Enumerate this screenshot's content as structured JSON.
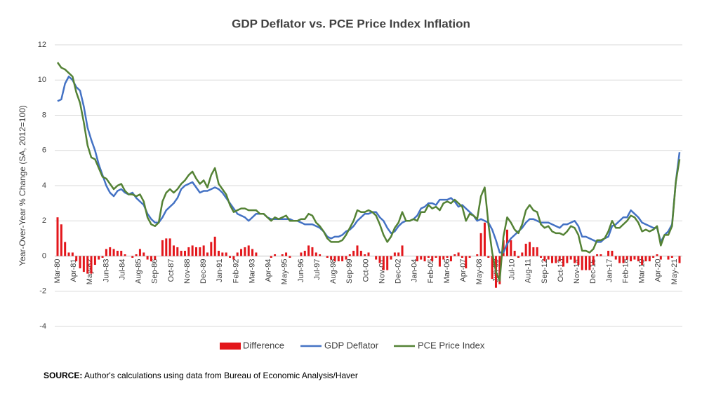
{
  "chart_data": {
    "type": "combo",
    "title": "GDP Deflator vs. PCE Price Index Inflation",
    "y_label": "Year-Over-Year % Change (SA, 2012=100)",
    "source_label": "SOURCE:",
    "source": "Author's calculations using data from Bureau of Economic Analysis/Haver",
    "x": [
      "Mar-80",
      "Jun-80",
      "Sep-80",
      "Dec-80",
      "Mar-81",
      "Jun-81",
      "Sep-81",
      "Dec-81",
      "Mar-82",
      "Jun-82",
      "Sep-82",
      "Dec-82",
      "Mar-83",
      "Jun-83",
      "Sep-83",
      "Dec-83",
      "Mar-84",
      "Jun-84",
      "Sep-84",
      "Dec-84",
      "Mar-85",
      "Jun-85",
      "Sep-85",
      "Dec-85",
      "Mar-86",
      "Jun-86",
      "Sep-86",
      "Dec-86",
      "Mar-87",
      "Jun-87",
      "Sep-87",
      "Dec-87",
      "Mar-88",
      "Jun-88",
      "Sep-88",
      "Dec-88",
      "Mar-89",
      "Jun-89",
      "Sep-89",
      "Dec-89",
      "Mar-90",
      "Jun-90",
      "Sep-90",
      "Dec-90",
      "Mar-91",
      "Jun-91",
      "Sep-91",
      "Dec-91",
      "Mar-92",
      "Jun-92",
      "Sep-92",
      "Dec-92",
      "Mar-93",
      "Jun-93",
      "Sep-93",
      "Dec-93",
      "Mar-94",
      "Jun-94",
      "Sep-94",
      "Dec-94",
      "Mar-95",
      "Jun-95",
      "Sep-95",
      "Dec-95",
      "Mar-96",
      "Jun-96",
      "Sep-96",
      "Dec-96",
      "Mar-97",
      "Jun-97",
      "Sep-97",
      "Dec-97",
      "Mar-98",
      "Jun-98",
      "Sep-98",
      "Dec-98",
      "Mar-99",
      "Jun-99",
      "Sep-99",
      "Dec-99",
      "Mar-00",
      "Jun-00",
      "Sep-00",
      "Dec-00",
      "Mar-01",
      "Jun-01",
      "Sep-01",
      "Dec-01",
      "Mar-02",
      "Jun-02",
      "Sep-02",
      "Dec-02",
      "Mar-03",
      "Jun-03",
      "Sep-03",
      "Dec-03",
      "Mar-04",
      "Jun-04",
      "Sep-04",
      "Dec-04",
      "Mar-05",
      "Jun-05",
      "Sep-05",
      "Dec-05",
      "Mar-06",
      "Jun-06",
      "Sep-06",
      "Dec-06",
      "Mar-07",
      "Jun-07",
      "Sep-07",
      "Dec-07",
      "Mar-08",
      "Jun-08",
      "Sep-08",
      "Dec-08",
      "Mar-09",
      "Jun-09",
      "Sep-09",
      "Dec-09",
      "Mar-10",
      "Jun-10",
      "Sep-10",
      "Dec-10",
      "Mar-11",
      "Jun-11",
      "Sep-11",
      "Dec-11",
      "Mar-12",
      "Jun-12",
      "Sep-12",
      "Dec-12",
      "Mar-13",
      "Jun-13",
      "Sep-13",
      "Dec-13",
      "Mar-14",
      "Jun-14",
      "Sep-14",
      "Dec-14",
      "Mar-15",
      "Jun-15",
      "Sep-15",
      "Dec-15",
      "Mar-16",
      "Jun-16",
      "Sep-16",
      "Dec-16",
      "Mar-17",
      "Jun-17",
      "Sep-17",
      "Dec-17",
      "Mar-18",
      "Jun-18",
      "Sep-18",
      "Dec-18",
      "Mar-19",
      "Jun-19",
      "Sep-19",
      "Dec-19",
      "Mar-20",
      "Jun-20",
      "Sep-20",
      "Dec-20",
      "Mar-21",
      "Jun-21",
      "Sep-21"
    ],
    "xlim": [
      "Mar-80",
      "Sep-21"
    ],
    "xticks": [
      "Mar-80",
      "Apr-81",
      "May-82",
      "Jun-83",
      "Jul-84",
      "Aug-85",
      "Sep-86",
      "Oct-87",
      "Nov-88",
      "Dec-89",
      "Jan-91",
      "Feb-92",
      "Mar-93",
      "Apr-94",
      "May-95",
      "Jun-96",
      "Jul-97",
      "Aug-98",
      "Sep-99",
      "Oct-00",
      "Nov-01",
      "Dec-02",
      "Jan-04",
      "Feb-05",
      "Mar-06",
      "Apr-07",
      "May-08",
      "Jun-09",
      "Jul-10",
      "Aug-11",
      "Sep-12",
      "Oct-13",
      "Nov-14",
      "Dec-15",
      "Jan-17",
      "Feb-18",
      "Mar-19",
      "Apr-20",
      "May-21"
    ],
    "ylim": [
      -4,
      12
    ],
    "yticks": [
      -4,
      -2,
      0,
      2,
      4,
      6,
      8,
      10,
      12
    ],
    "grid": true,
    "legend": "bottom",
    "series": [
      {
        "name": "Difference",
        "type": "bar",
        "color": "#e3161b",
        "values": [
          2.2,
          1.8,
          0.8,
          0.2,
          0.2,
          -0.3,
          -0.7,
          -0.9,
          -1.0,
          -1.0,
          -0.5,
          -0.2,
          -0.1,
          0.4,
          0.5,
          0.4,
          0.3,
          0.3,
          0.1,
          0.0,
          -0.1,
          0.1,
          0.4,
          0.2,
          -0.2,
          -0.3,
          -0.2,
          0.0,
          0.9,
          1.0,
          1.0,
          0.6,
          0.5,
          0.3,
          0.3,
          0.5,
          0.6,
          0.5,
          0.5,
          0.6,
          0.2,
          0.8,
          1.1,
          0.3,
          0.2,
          0.2,
          -0.1,
          -0.2,
          0.2,
          0.4,
          0.5,
          0.6,
          0.4,
          0.2,
          0.0,
          0.0,
          0.0,
          -0.1,
          0.1,
          0.0,
          0.1,
          0.2,
          -0.1,
          0.0,
          0.0,
          0.2,
          0.3,
          0.6,
          0.5,
          0.2,
          0.1,
          0.0,
          -0.1,
          -0.2,
          -0.3,
          -0.3,
          -0.3,
          -0.2,
          0.1,
          0.3,
          0.6,
          0.3,
          0.1,
          0.2,
          0.0,
          -0.2,
          -0.4,
          -0.8,
          -0.8,
          -0.2,
          0.2,
          0.2,
          0.6,
          0.0,
          0.0,
          0.0,
          -0.3,
          -0.2,
          -0.3,
          -0.1,
          -0.3,
          -0.1,
          -0.6,
          -0.2,
          -0.1,
          -0.3,
          0.1,
          0.2,
          -0.1,
          -0.7,
          -0.1,
          0.0,
          0.1,
          1.3,
          1.9,
          -0.1,
          -1.3,
          -1.8,
          -1.6,
          0.9,
          1.5,
          0.9,
          0.3,
          -0.1,
          0.2,
          0.7,
          0.8,
          0.5,
          0.5,
          -0.1,
          -0.3,
          -0.2,
          -0.4,
          -0.4,
          -0.3,
          -0.6,
          -0.4,
          -0.2,
          -0.4,
          -0.5,
          -0.8,
          -0.8,
          -0.8,
          -0.5,
          0.1,
          0.1,
          0.0,
          0.3,
          0.3,
          -0.2,
          -0.4,
          -0.4,
          -0.2,
          -0.3,
          -0.2,
          -0.3,
          -0.5,
          -0.3,
          -0.3,
          -0.1,
          0.1,
          -0.2,
          0.0,
          -0.2,
          -0.1,
          0.0,
          -0.4
        ]
      },
      {
        "name": "GDP Deflator",
        "type": "line",
        "color": "#4472c4",
        "values": [
          8.8,
          8.9,
          9.8,
          10.2,
          10.0,
          9.6,
          9.4,
          8.5,
          7.3,
          6.6,
          6.0,
          5.2,
          4.6,
          4.0,
          3.6,
          3.4,
          3.7,
          3.8,
          3.6,
          3.5,
          3.6,
          3.3,
          3.1,
          2.9,
          2.4,
          2.1,
          1.9,
          1.9,
          2.2,
          2.6,
          2.8,
          3.0,
          3.3,
          3.8,
          4.0,
          4.1,
          4.2,
          3.9,
          3.6,
          3.7,
          3.7,
          3.8,
          3.9,
          3.8,
          3.6,
          3.3,
          3.0,
          2.7,
          2.4,
          2.3,
          2.2,
          2.0,
          2.2,
          2.4,
          2.4,
          2.4,
          2.2,
          2.1,
          2.1,
          2.1,
          2.1,
          2.1,
          2.1,
          2.0,
          2.0,
          1.9,
          1.8,
          1.8,
          1.8,
          1.7,
          1.6,
          1.4,
          1.1,
          1.0,
          1.1,
          1.1,
          1.2,
          1.4,
          1.5,
          1.7,
          2.0,
          2.2,
          2.4,
          2.4,
          2.5,
          2.5,
          2.2,
          2.0,
          1.6,
          1.3,
          1.4,
          1.7,
          1.9,
          2.0,
          2.0,
          2.1,
          2.3,
          2.7,
          2.8,
          3.0,
          3.0,
          2.9,
          3.2,
          3.2,
          3.2,
          3.3,
          3.1,
          2.8,
          2.9,
          2.7,
          2.5,
          2.3,
          2.0,
          2.1,
          2.0,
          1.9,
          1.5,
          0.9,
          0.2,
          0.2,
          0.7,
          1.0,
          1.2,
          1.4,
          1.6,
          1.9,
          2.1,
          2.1,
          2.0,
          1.9,
          1.9,
          1.9,
          1.8,
          1.7,
          1.6,
          1.8,
          1.8,
          1.9,
          2.0,
          1.7,
          1.1,
          1.1,
          1.0,
          0.9,
          0.8,
          0.8,
          1.0,
          1.1,
          1.7,
          1.8,
          2.0,
          2.2,
          2.2,
          2.6,
          2.4,
          2.2,
          1.9,
          1.8,
          1.7,
          1.6,
          1.6,
          0.8,
          1.2,
          1.4,
          1.8,
          4.2,
          5.9
        ]
      },
      {
        "name": "PCE Price Index",
        "type": "line",
        "color": "#548235",
        "values": [
          11.0,
          10.7,
          10.6,
          10.4,
          10.2,
          9.3,
          8.7,
          7.6,
          6.3,
          5.6,
          5.5,
          5.0,
          4.5,
          4.4,
          4.1,
          3.8,
          4.0,
          4.1,
          3.7,
          3.5,
          3.5,
          3.4,
          3.5,
          3.1,
          2.2,
          1.8,
          1.7,
          1.9,
          3.1,
          3.6,
          3.8,
          3.6,
          3.8,
          4.1,
          4.3,
          4.6,
          4.8,
          4.4,
          4.1,
          4.3,
          3.9,
          4.6,
          5.0,
          4.1,
          3.8,
          3.5,
          2.9,
          2.5,
          2.6,
          2.7,
          2.7,
          2.6,
          2.6,
          2.6,
          2.4,
          2.4,
          2.2,
          2.0,
          2.2,
          2.1,
          2.2,
          2.3,
          2.0,
          2.0,
          2.0,
          2.1,
          2.1,
          2.4,
          2.3,
          1.9,
          1.7,
          1.4,
          1.0,
          0.8,
          0.8,
          0.8,
          0.9,
          1.2,
          1.6,
          2.0,
          2.6,
          2.5,
          2.5,
          2.6,
          2.5,
          2.3,
          1.8,
          1.2,
          0.8,
          1.1,
          1.6,
          1.9,
          2.5,
          2.0,
          2.0,
          2.1,
          2.0,
          2.5,
          2.5,
          2.9,
          2.7,
          2.8,
          2.6,
          3.0,
          3.1,
          3.0,
          3.2,
          3.0,
          2.8,
          2.0,
          2.4,
          2.3,
          2.1,
          3.4,
          3.9,
          1.8,
          0.2,
          -0.9,
          -1.4,
          1.1,
          2.2,
          1.9,
          1.5,
          1.3,
          1.8,
          2.6,
          2.9,
          2.6,
          2.5,
          1.8,
          1.6,
          1.7,
          1.4,
          1.3,
          1.3,
          1.2,
          1.4,
          1.7,
          1.6,
          1.2,
          0.3,
          0.3,
          0.2,
          0.4,
          0.9,
          0.9,
          1.0,
          1.4,
          2.0,
          1.6,
          1.6,
          1.8,
          2.0,
          2.3,
          2.2,
          1.9,
          1.4,
          1.5,
          1.4,
          1.5,
          1.7,
          0.6,
          1.2,
          1.2,
          1.7,
          4.2,
          5.5
        ]
      }
    ]
  }
}
